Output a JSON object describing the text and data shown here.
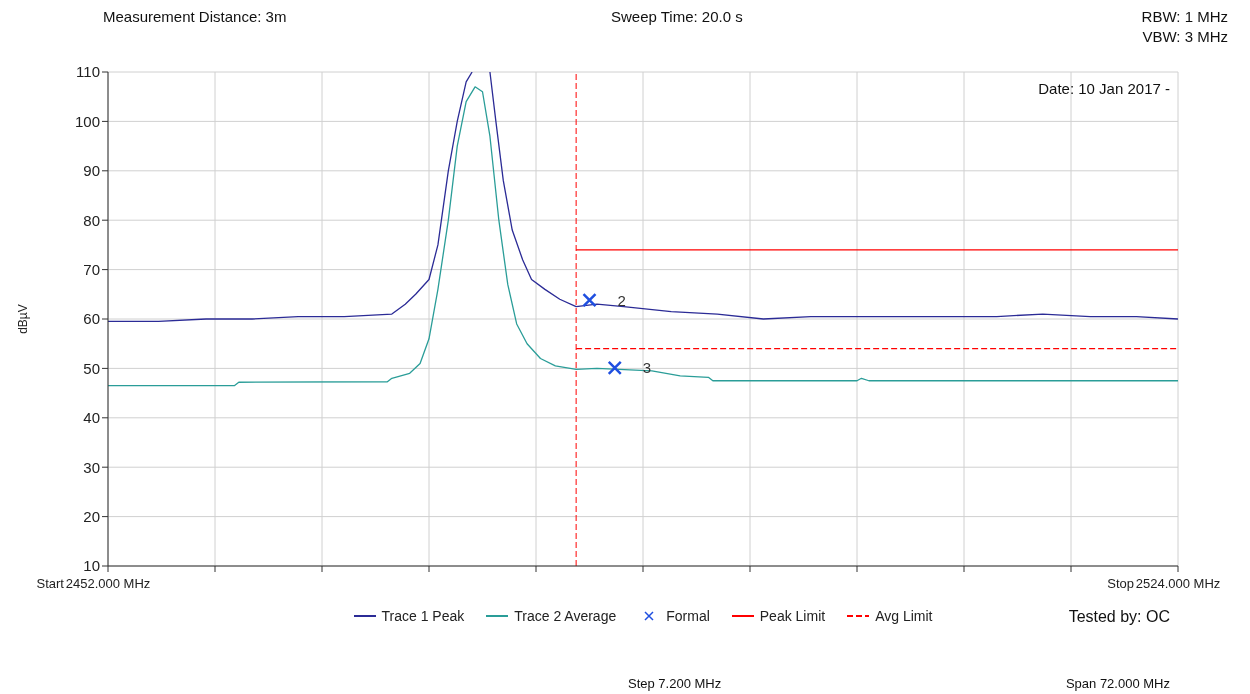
{
  "chart_data": {
    "type": "line",
    "ylabel": "dBµV",
    "annotations": [
      "Measurement Distance: 3m",
      "Sweep Time: 20.0 s",
      "RBW: 1 MHz",
      "VBW: 3 MHz",
      "Date: 10 Jan 2017 -",
      "Tested by: OC",
      "Step 7.200 MHz",
      "Span 72.000 MHz",
      "Start",
      "Stop",
      {
        "text": "2",
        "x": 2484.4,
        "y": 63.8
      },
      {
        "text": "3",
        "x": 2486.1,
        "y": 50.1
      }
    ],
    "xlim": [
      2452,
      2524
    ],
    "xticks": [
      {
        "value": 2452,
        "label": "2452.000 MHz"
      },
      {
        "value": 2459.2,
        "label": null
      },
      {
        "value": 2466.4,
        "label": null
      },
      {
        "value": 2473.6,
        "label": null
      },
      {
        "value": 2480.8,
        "label": null
      },
      {
        "value": 2488,
        "label": null
      },
      {
        "value": 2495.2,
        "label": null
      },
      {
        "value": 2502.4,
        "label": null
      },
      {
        "value": 2509.6,
        "label": null
      },
      {
        "value": 2516.8,
        "label": null
      },
      {
        "value": 2524,
        "label": "2524.000 MHz"
      }
    ],
    "ylim": [
      10,
      110
    ],
    "yticks": [
      10,
      20,
      30,
      40,
      50,
      60,
      70,
      80,
      90,
      100,
      110
    ],
    "grid": true,
    "legend": "bottom",
    "ref_lines": [
      {
        "axis": "x",
        "value": 2483.5,
        "color": "#ff0000",
        "line_style": "dashed"
      }
    ],
    "series": [
      {
        "name": "Trace 1 Peak",
        "color": "#2b2b96",
        "x": [
          2452.0,
          2455.4,
          2458.6,
          2461.7,
          2464.8,
          2467.9,
          2471.1,
          2472.0,
          2472.7,
          2473.6,
          2474.2,
          2474.9,
          2475.5,
          2476.1,
          2476.5,
          2477.2,
          2477.7,
          2478.1,
          2478.6,
          2479.2,
          2479.9,
          2480.5,
          2481.4,
          2482.4,
          2483.5,
          2484.9,
          2486.7,
          2489.9,
          2493.0,
          2496.1,
          2499.3,
          2502.4,
          2505.5,
          2508.7,
          2511.8,
          2514.9,
          2518.1,
          2521.2,
          2524.0
        ],
        "values": [
          59.5,
          59.5,
          60,
          60,
          60.5,
          60.5,
          61,
          63,
          65,
          68,
          75,
          90,
          100,
          108,
          110,
          null,
          110,
          100,
          88,
          78,
          72,
          68,
          66,
          64,
          62.5,
          63,
          62.5,
          61.5,
          61,
          60,
          60.5,
          60.5,
          60.5,
          60.5,
          60.5,
          61,
          60.5,
          60.5,
          60
        ]
      },
      {
        "name": "Trace 2 Average",
        "color": "#2a9d98",
        "x": [
          2452.0,
          2460.5,
          2460.8,
          2470.8,
          2471.1,
          2472.3,
          2473.0,
          2473.6,
          2474.2,
          2474.9,
          2475.5,
          2476.1,
          2476.7,
          2477.2,
          2477.7,
          2478.3,
          2478.9,
          2479.5,
          2480.2,
          2481.1,
          2482.1,
          2483.5,
          2484.9,
          2488.6,
          2490.5,
          2492.4,
          2492.7,
          2502.4,
          2502.7,
          2503.2,
          2524.0
        ],
        "values": [
          46.5,
          46.5,
          47.2,
          47.3,
          48,
          49,
          51,
          56,
          66,
          80,
          95,
          104,
          107,
          106,
          97,
          80,
          67,
          59,
          55,
          52,
          50.5,
          49.8,
          50,
          49.5,
          48.5,
          48.2,
          47.5,
          47.5,
          48,
          47.5,
          47.5
        ]
      },
      {
        "name": "Formal",
        "color": "#1f4fe0",
        "type": "scatter",
        "marker": "cross",
        "x": [
          2484.4,
          2486.1
        ],
        "values": [
          63.8,
          50.1
        ]
      },
      {
        "name": "Peak Limit",
        "color": "#ff0000",
        "line_style": "solid",
        "x": [
          2483.5,
          2524
        ],
        "values": [
          74,
          74
        ]
      },
      {
        "name": "Avg Limit",
        "color": "#ff0000",
        "line_style": "dashed",
        "x": [
          2483.5,
          2524
        ],
        "values": [
          54,
          54
        ]
      }
    ]
  }
}
